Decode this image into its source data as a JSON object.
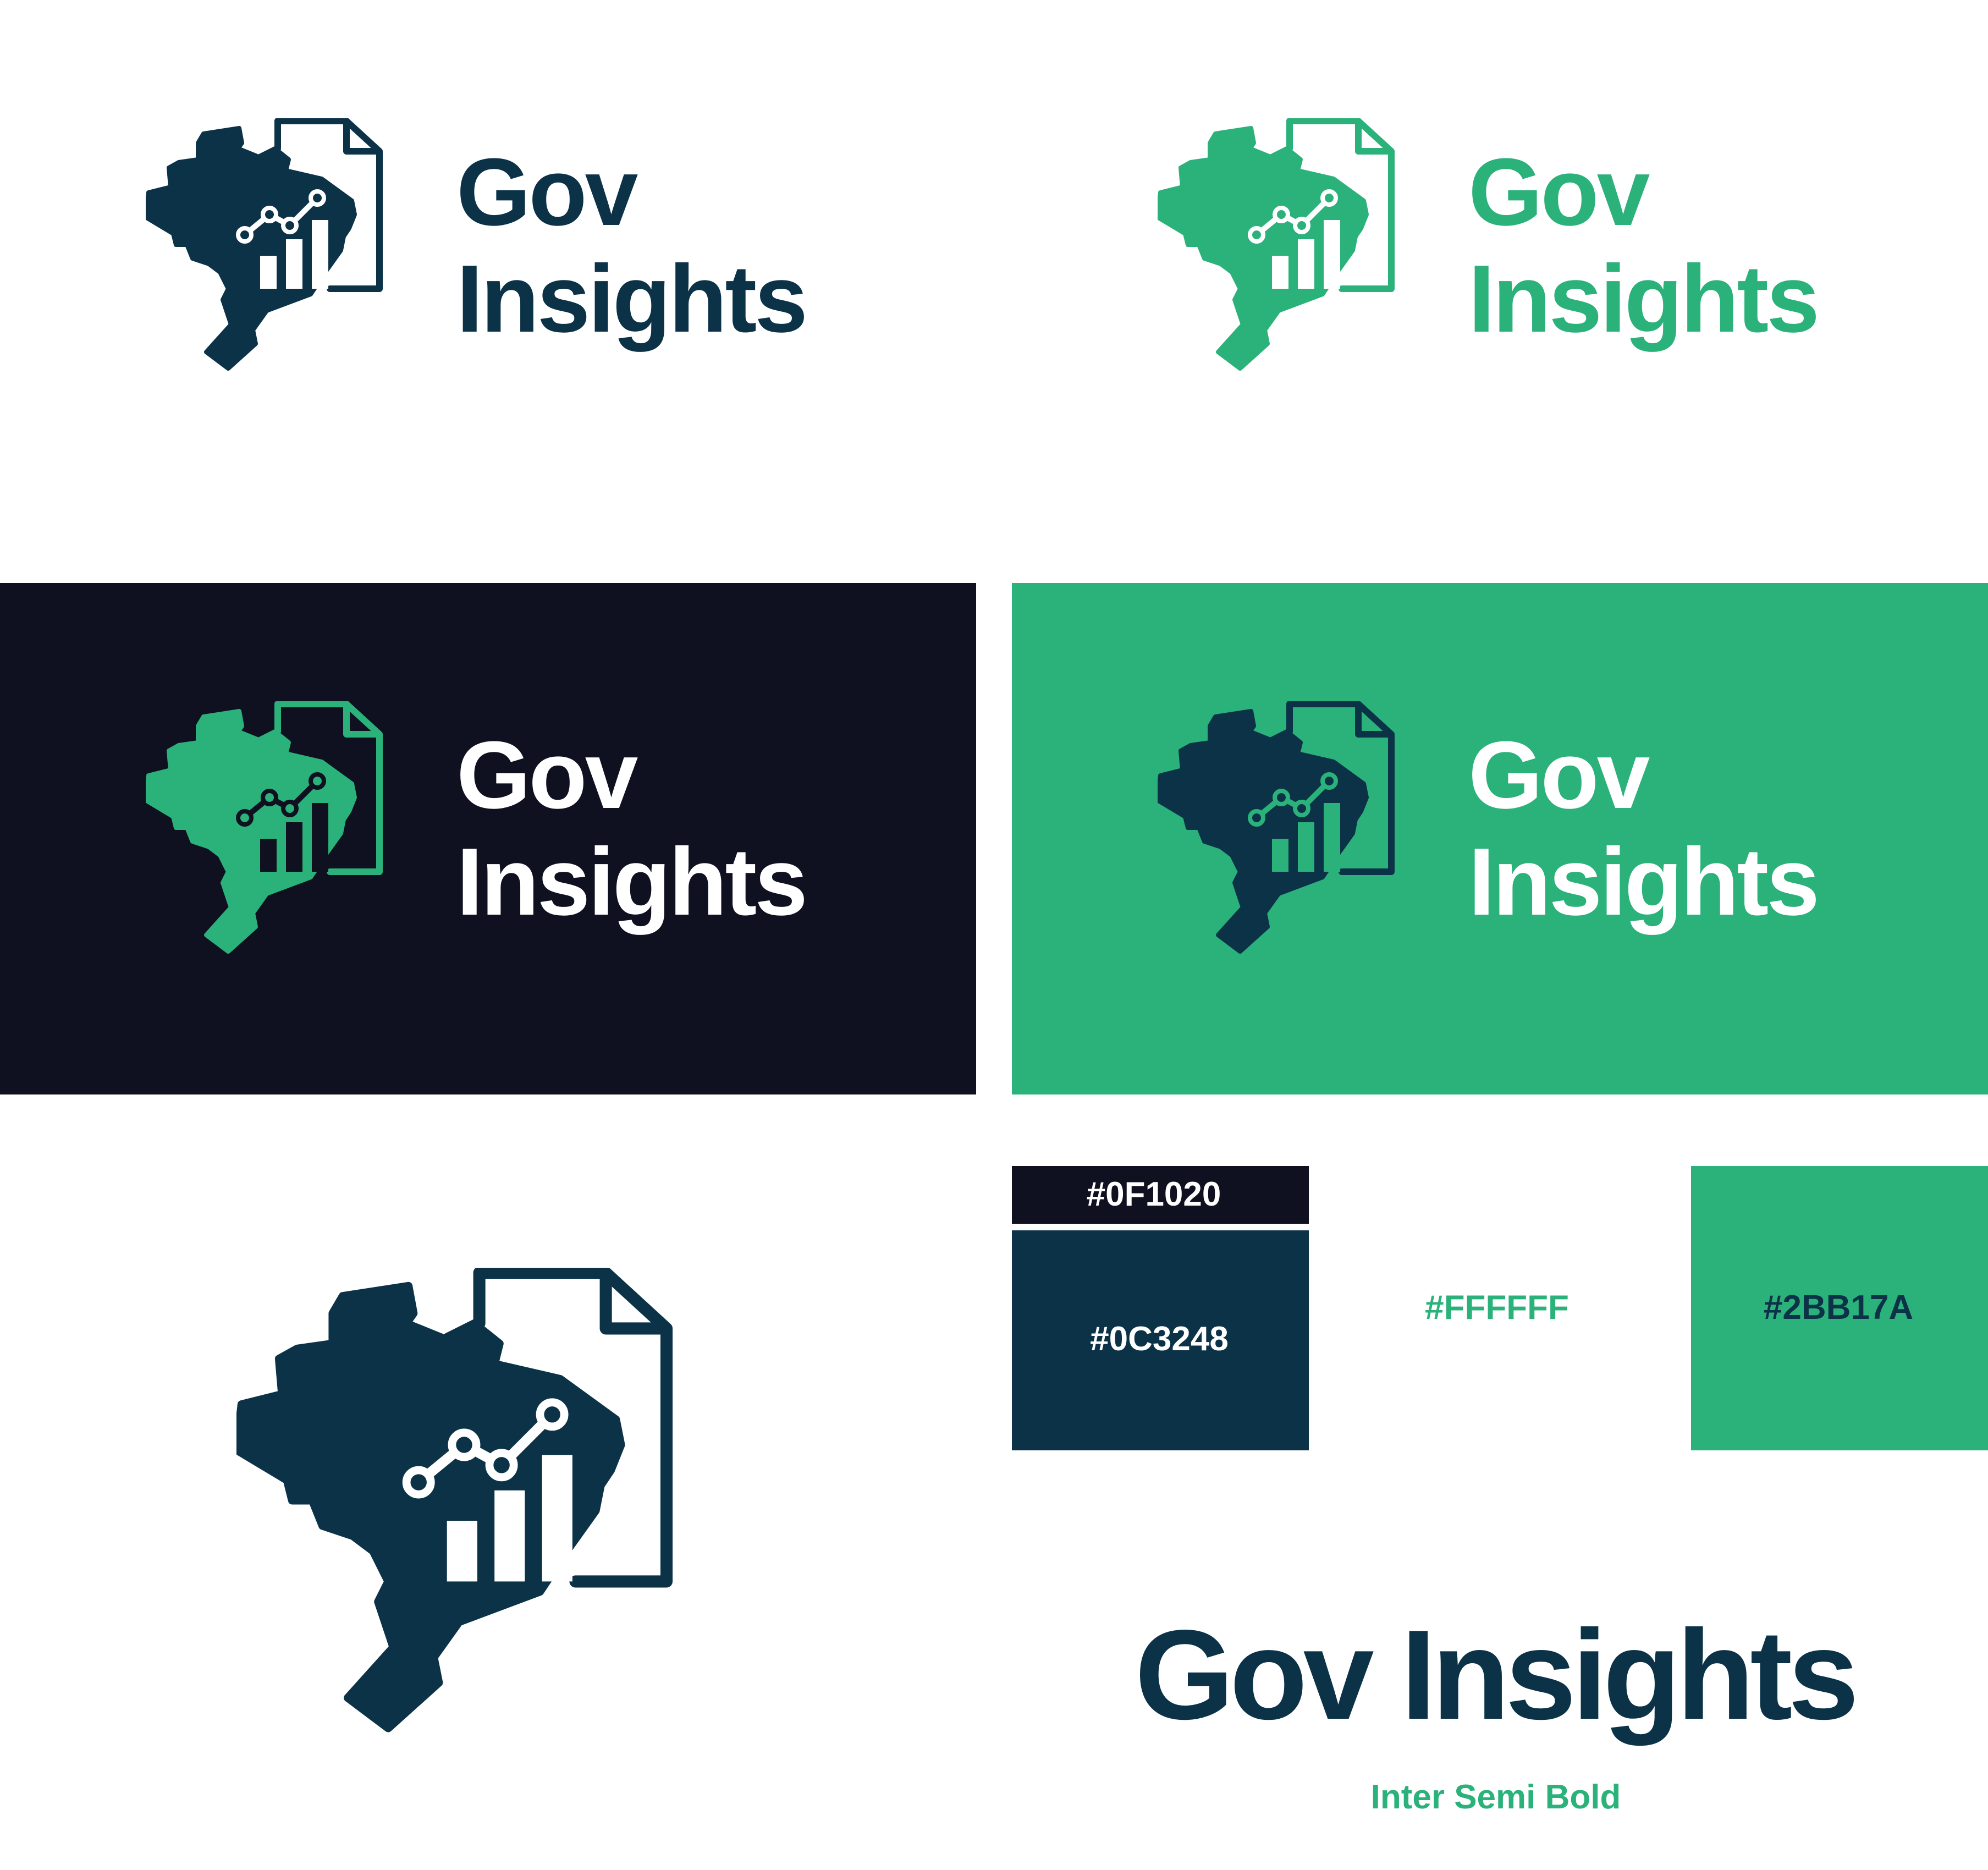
{
  "brand": {
    "name_line1": "Gov",
    "name_line2": "Insights",
    "name_full": "Gov Insights",
    "icon": "brazil-map-document-chart-icon"
  },
  "palette": {
    "dark": "#0F1020",
    "navy": "#0C3248",
    "white": "#FFFFFF",
    "green": "#2BB17A"
  },
  "swatches": [
    {
      "label": "#0F1020",
      "color": "#0F1020"
    },
    {
      "label": "#0C3248",
      "color": "#0C3248"
    },
    {
      "label": "#FFFFFF",
      "color": "#FFFFFF"
    },
    {
      "label": "#2BB17A",
      "color": "#2BB17A"
    }
  ],
  "typography": {
    "font_caption": "Inter Semi Bold"
  }
}
